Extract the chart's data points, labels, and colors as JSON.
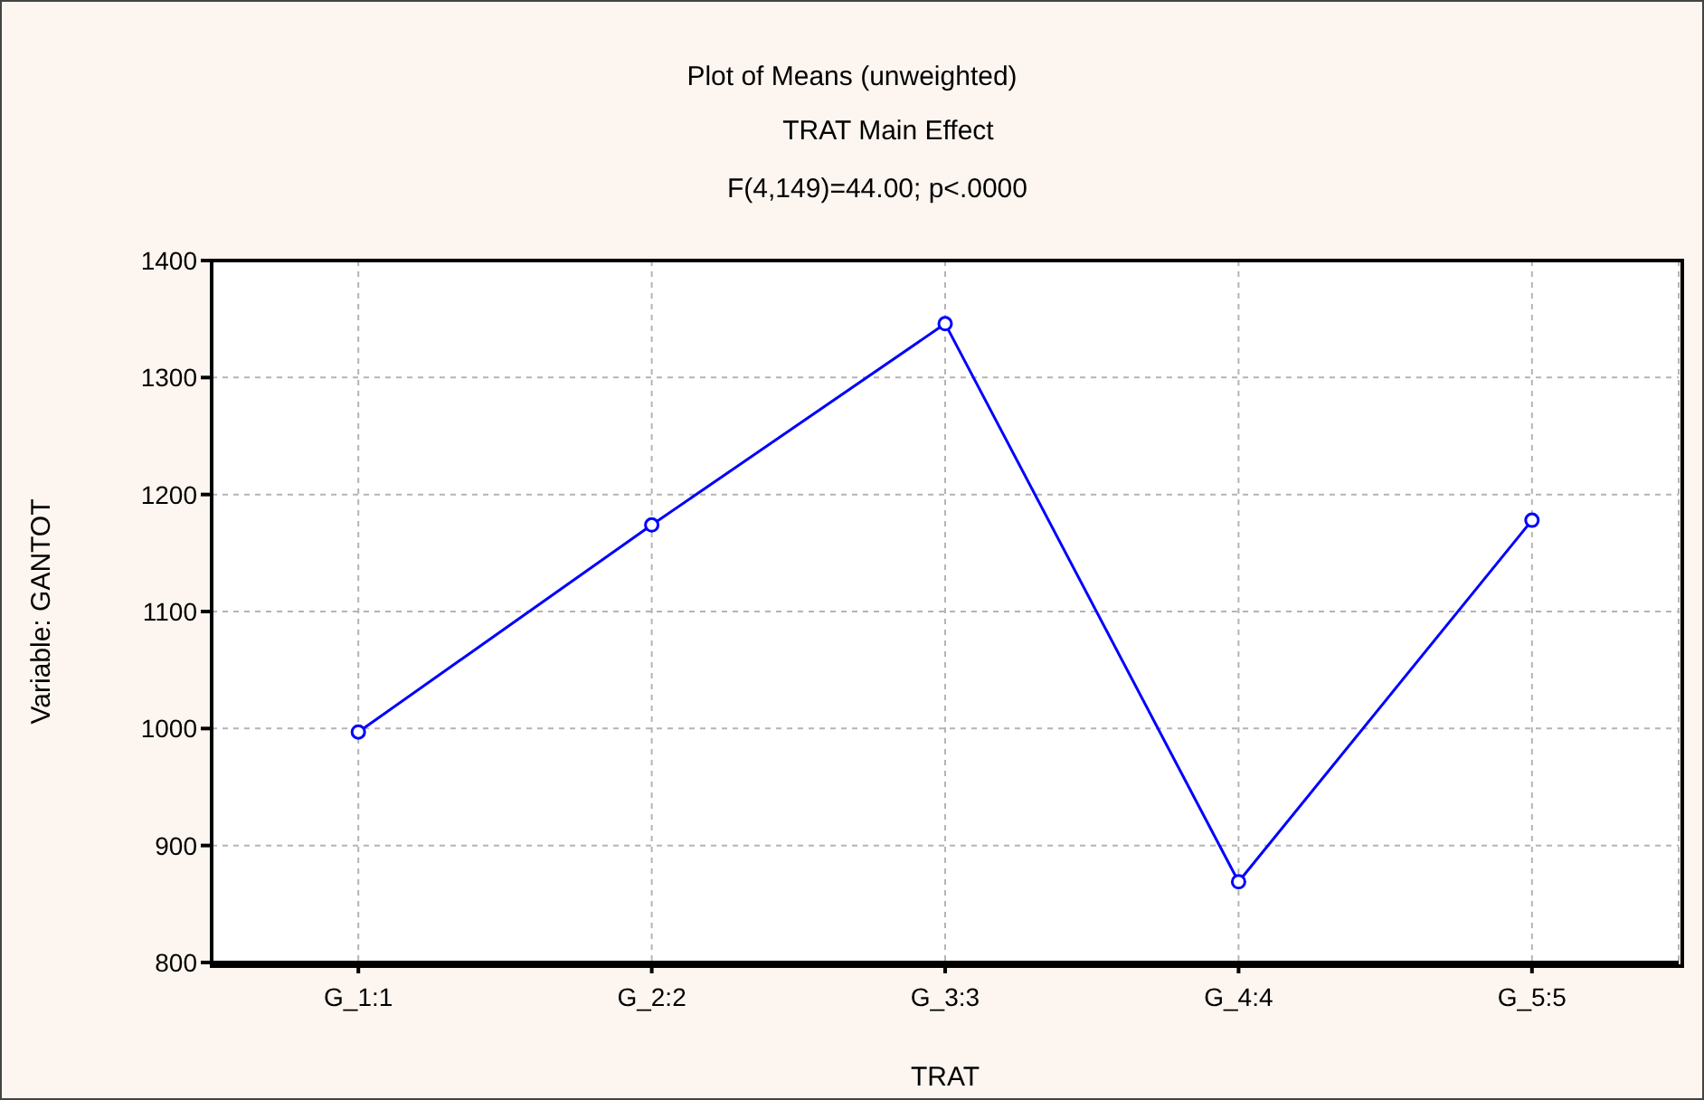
{
  "chart_data": {
    "type": "line",
    "title": "Plot of Means (unweighted)",
    "subtitle": "TRAT Main Effect",
    "annotations": [
      "F(4,149)=44.00; p<.0000"
    ],
    "xlabel": "TRAT",
    "ylabel": "Variable: GANTOT",
    "categories": [
      "G_1:1",
      "G_2:2",
      "G_3:3",
      "G_4:4",
      "G_5:5"
    ],
    "series": [
      {
        "color": "#0000ff",
        "values": [
          997,
          1174,
          1346,
          869,
          1178
        ]
      }
    ],
    "ylim": [
      800,
      1400
    ],
    "yticks": [
      800,
      900,
      1000,
      1100,
      1200,
      1300,
      1400
    ],
    "grid": true,
    "marker": "circle",
    "line_style": "solid"
  }
}
